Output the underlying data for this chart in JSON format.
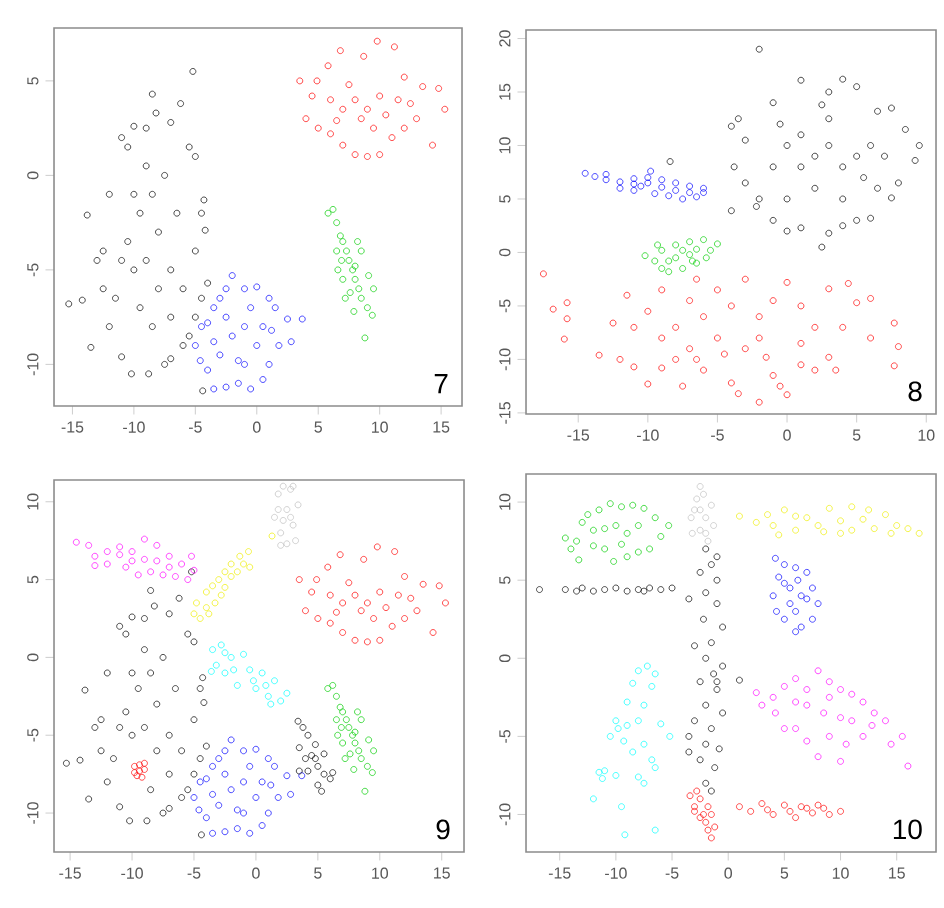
{
  "chart_data": [
    {
      "type": "scatter",
      "marker": "circle",
      "xlim": [
        -16.5,
        16.7
      ],
      "ylim": [
        -12.2,
        7.8
      ],
      "xticks": [
        -15,
        -10,
        -5,
        0,
        5,
        10,
        15
      ],
      "yticks": [
        -10,
        -5,
        0,
        5
      ],
      "annotations": [
        "7"
      ],
      "series": [
        {
          "color": "#000000",
          "x": [
            -15.3,
            -14.2,
            -13.5,
            -13.8,
            -12.5,
            -12,
            -11,
            -10.5,
            -10,
            -9,
            -8.5,
            -8.2,
            -7,
            -6.2,
            -5.2,
            -5.5,
            -5,
            -4.3,
            -4.5,
            -4.2,
            -5,
            -4,
            -4.5,
            -5,
            -5.5,
            -6,
            -7,
            -7.5,
            -8.8,
            -10.2,
            -11,
            -12,
            -12.5,
            -13,
            -11.5,
            -10,
            -9,
            -8,
            -9.5,
            -8.5,
            -7.5,
            -9,
            -10,
            -7,
            -8,
            -9.5,
            -6.5,
            -6,
            -10.5,
            -8.5,
            -7,
            -11,
            -4.4
          ],
          "values": [
            -6.8,
            -6.6,
            -9.1,
            -2.1,
            -4,
            -1,
            2,
            1.5,
            2.6,
            2.5,
            4.3,
            3.3,
            2.8,
            3.8,
            5.5,
            1.5,
            1,
            -1.3,
            -2,
            -2.9,
            -4,
            -5.7,
            -6.5,
            -7.5,
            -8.5,
            -9,
            -9.7,
            -10,
            -10.5,
            -10.5,
            -9.6,
            -8,
            -6,
            -4.5,
            -6.5,
            -5,
            -4.5,
            -3,
            -2,
            -1,
            0,
            0.5,
            -1,
            -5,
            -6,
            -7,
            -2,
            -6,
            -3.5,
            -8,
            -7.5,
            -4.5,
            -11.4
          ]
        },
        {
          "color": "#ff0000",
          "x": [
            3.5,
            4.5,
            4,
            5,
            6,
            7,
            8,
            9,
            10,
            11,
            12,
            14.3,
            13,
            15.3,
            14.8,
            13.5,
            12,
            11.2,
            9.8,
            8.7,
            6.8,
            5.8,
            4.9,
            6,
            7,
            8,
            9,
            10,
            8.5,
            9.5,
            7.5,
            10.5,
            11.5,
            6.5,
            12.5
          ],
          "values": [
            5,
            4.2,
            3,
            2.5,
            2.2,
            1.6,
            1.1,
            1,
            1.1,
            2,
            2.5,
            1.6,
            3,
            3.5,
            4.6,
            4.7,
            5.2,
            6.8,
            7.1,
            6.3,
            6.6,
            5.8,
            5,
            4,
            3.5,
            4,
            3.5,
            4.2,
            3,
            2.5,
            4.8,
            3.2,
            4,
            2.9,
            3.8
          ]
        },
        {
          "color": "#00cc00",
          "x": [
            5.8,
            6.2,
            6.5,
            6.8,
            7,
            7.3,
            7.5,
            7.8,
            8,
            8.3,
            8.5,
            9,
            9.4,
            8.8,
            7.2,
            6.6,
            6.5,
            8.5,
            8.2,
            9.5,
            7,
            7.6,
            8,
            6.9,
            9.1,
            7.9
          ],
          "values": [
            -2,
            -1.8,
            -2.5,
            -3.2,
            -3.5,
            -4,
            -4.5,
            -5,
            -5.5,
            -6,
            -6.5,
            -7,
            -7.4,
            -8.6,
            -6.5,
            -5,
            -4,
            -4,
            -3.5,
            -6,
            -5.5,
            -6.2,
            -4.8,
            -4.5,
            -5.3,
            -7.2
          ]
        },
        {
          "color": "#0000ff",
          "x": [
            -5,
            -4.5,
            -4,
            -3.5,
            -3,
            -2.5,
            -2,
            -1,
            0,
            1,
            1.5,
            2.5,
            3.7,
            2.8,
            1.8,
            1,
            0.5,
            -0.5,
            -1.5,
            -2.5,
            -3.5,
            -4,
            -4.6,
            -2,
            -1,
            0,
            -3,
            -1.5,
            -0.5,
            -2.5,
            0.5,
            -3.5,
            1.2,
            -1
          ],
          "values": [
            -9,
            -8,
            -7.8,
            -7,
            -6.5,
            -6,
            -5.3,
            -6,
            -5.9,
            -6.5,
            -7,
            -7.6,
            -7.6,
            -8.8,
            -9,
            -10,
            -10.8,
            -11.3,
            -11,
            -11.2,
            -11.3,
            -10.3,
            -9.8,
            -8.5,
            -8,
            -9,
            -9.5,
            -9.8,
            -7,
            -7.5,
            -8,
            -8.8,
            -8.2,
            -10
          ]
        }
      ]
    },
    {
      "type": "scatter",
      "marker": "circle",
      "xlim": [
        -18.75,
        10.7
      ],
      "ylim": [
        -15.1,
        20.8
      ],
      "xticks": [
        -15,
        -10,
        -5,
        0,
        5,
        10
      ],
      "yticks": [
        -15,
        -10,
        -5,
        0,
        5,
        10,
        15,
        20
      ],
      "annotations": [
        "8"
      ],
      "series": [
        {
          "color": "#000000",
          "x": [
            -4,
            -3.5,
            -3,
            -3.8,
            -4,
            -3,
            -2,
            -2.2,
            -1,
            0,
            1,
            2.5,
            3,
            4,
            5,
            6,
            7.5,
            8,
            9.2,
            9.5,
            8.5,
            7.5,
            6.5,
            5,
            4,
            3,
            1,
            -1,
            -2,
            -0.5,
            0,
            1,
            2,
            3,
            4,
            5,
            6,
            2,
            4,
            1,
            3,
            5.5,
            -1,
            0,
            7,
            2.5,
            6.5,
            -8.4
          ],
          "values": [
            11.8,
            12.5,
            10.5,
            8,
            3.9,
            6.5,
            5,
            4.3,
            3,
            2,
            2.3,
            0.5,
            1.8,
            2.5,
            3,
            3.2,
            5.1,
            6.5,
            8.6,
            10,
            11.5,
            13.5,
            13.2,
            15.5,
            16.2,
            15,
            16.1,
            14,
            19,
            12,
            10,
            8,
            9,
            10,
            8,
            9,
            10,
            6,
            5,
            11,
            12.5,
            7,
            8,
            5,
            9,
            13.8,
            6,
            8.5
          ]
        },
        {
          "color": "#0000ff",
          "x": [
            -14.5,
            -13.8,
            -13,
            -12,
            -11,
            -10,
            -9,
            -8,
            -7,
            -6,
            -6,
            -7,
            -8,
            -9,
            -10,
            -11,
            -12,
            -11,
            -9.5,
            -8.5,
            -10.5,
            -7.5,
            -13,
            -9.8,
            -6.5
          ],
          "values": [
            7.4,
            7.1,
            6.8,
            6.6,
            6.4,
            6.5,
            6.1,
            5.8,
            5.6,
            5.6,
            6,
            6.2,
            6.5,
            6.8,
            7,
            6.9,
            6,
            5.8,
            5.5,
            5.3,
            6.2,
            5,
            7.3,
            7.6,
            5.2
          ]
        },
        {
          "color": "#00cc00",
          "x": [
            -10.2,
            -9.5,
            -9,
            -8.5,
            -7.5,
            -6.5,
            -5.8,
            -5,
            -6,
            -7,
            -8,
            -9,
            -8,
            -7,
            -6.5,
            -7.5,
            -8.5,
            -6.8,
            -9.3,
            -5.5
          ],
          "values": [
            -0.3,
            -0.8,
            -1.5,
            -1.8,
            -1.5,
            -1,
            -0.5,
            0.8,
            1.2,
            1,
            0.7,
            0.2,
            -0.5,
            -0.2,
            0.3,
            0.2,
            -0.8,
            -0.8,
            0.7,
            0.2
          ]
        },
        {
          "color": "#ff0000",
          "x": [
            -17.5,
            -16.8,
            -15.8,
            -15.8,
            -16,
            -13.5,
            -12.5,
            -12,
            -11,
            -11,
            -10,
            -9,
            -9,
            -8,
            -7.5,
            -7,
            -7,
            -6.5,
            -6,
            -5,
            -4,
            -3.5,
            -3,
            -2,
            -1,
            -0.5,
            0,
            1,
            2,
            3,
            4,
            5,
            6,
            7.7,
            8,
            7.7,
            4.4,
            3,
            1,
            0,
            -1,
            -2,
            -3,
            -4,
            -5,
            -6,
            -9,
            -10,
            -11.5,
            -2,
            2,
            -4.5,
            -8,
            3.5,
            6,
            -1.5,
            1,
            -6.5
          ],
          "values": [
            -2,
            -5.3,
            -4.7,
            -6.2,
            -8.1,
            -9.6,
            -6.6,
            -10,
            -7,
            -10.7,
            -12.3,
            -8,
            -10.8,
            -7,
            -12.5,
            -9,
            -4.5,
            -10,
            -11,
            -8,
            -12.2,
            -13.2,
            -9,
            -14,
            -11.5,
            -12.5,
            -13.3,
            -10.5,
            -11,
            -9.8,
            -7,
            -4.7,
            -4.3,
            -6.6,
            -8.8,
            -10.6,
            -2.9,
            -3.4,
            -5,
            -2.8,
            -4.5,
            -6,
            -2.5,
            -5,
            -3.5,
            -6,
            -3.5,
            -5.5,
            -4,
            -8,
            -7,
            -9.5,
            -10,
            -11,
            -8,
            -9.8,
            -8.5,
            -2.5
          ]
        }
      ]
    },
    {
      "type": "scatter",
      "marker": "circle",
      "xlim": [
        -16.3,
        16.8
      ],
      "ylim": [
        -12.5,
        11.4
      ],
      "xticks": [
        -15,
        -10,
        -5,
        0,
        5,
        10,
        15
      ],
      "yticks": [
        -10,
        -5,
        0,
        5,
        10
      ],
      "annotations": [
        "9"
      ],
      "series": [
        {
          "color": "#000000",
          "x": [
            -15.3,
            -14.2,
            -13.5,
            -13.8,
            -12.5,
            -12,
            -11,
            -10.5,
            -10,
            -9,
            -8.5,
            -8.2,
            -7,
            -6.2,
            -5.2,
            -5.5,
            -5,
            -4.3,
            -4.5,
            -4.2,
            -5,
            -4,
            -4.5,
            -5,
            -5.5,
            -6,
            -7,
            -7.5,
            -8.8,
            -10.2,
            -11,
            -12,
            -12.5,
            -13,
            -11.5,
            -10,
            -9,
            -8,
            -9.5,
            -8.5,
            -7.5,
            -9,
            -10,
            -7,
            -8,
            -6.5,
            -6,
            -10.5,
            -8.5,
            -7,
            -11,
            -4.4
          ],
          "values": [
            -6.8,
            -6.6,
            -9.1,
            -2.1,
            -4,
            -1,
            2,
            1.5,
            2.6,
            2.5,
            4.3,
            3.3,
            2.8,
            3.8,
            5.5,
            1.5,
            1,
            -1.3,
            -2,
            -2.9,
            -4,
            -5.7,
            -6.5,
            -7.5,
            -8.5,
            -9,
            -9.7,
            -10,
            -10.5,
            -10.5,
            -9.6,
            -8,
            -6,
            -4.5,
            -6.5,
            -5,
            -4.5,
            -3,
            -2,
            -1,
            0,
            0.5,
            -1,
            -5,
            -6,
            -2,
            -6,
            -3.5,
            -8.5,
            -7.5,
            -4.5,
            -11.4
          ]
        },
        {
          "color": "#ff0000",
          "x": [
            3.5,
            4.5,
            4,
            5,
            6,
            7,
            8,
            9,
            10,
            11,
            12,
            14.3,
            13,
            15.3,
            14.8,
            13.5,
            12,
            11.2,
            9.8,
            8.7,
            6.8,
            5.8,
            4.9,
            6,
            7,
            8,
            9,
            10,
            8.5,
            9.5,
            7.5,
            10.5,
            11.5,
            6.5,
            12.5
          ],
          "values": [
            5,
            4.2,
            3,
            2.5,
            2.2,
            1.6,
            1.1,
            1,
            1.1,
            2,
            2.5,
            1.6,
            3,
            3.5,
            4.6,
            4.7,
            5.2,
            6.8,
            7.1,
            6.3,
            6.6,
            5.8,
            5,
            4,
            3.5,
            4,
            3.5,
            4.2,
            3,
            2.5,
            4.8,
            3.2,
            4,
            2.9,
            3.8
          ]
        },
        {
          "color": "#00cc00",
          "x": [
            5.8,
            6.2,
            6.5,
            6.8,
            7,
            7.3,
            7.5,
            7.8,
            8,
            8.3,
            8.5,
            9,
            9.4,
            8.8,
            7.2,
            6.6,
            6.5,
            8.5,
            8.2,
            9.5,
            7,
            7.6,
            8,
            6.9,
            9.1,
            7.9
          ],
          "values": [
            -2,
            -1.8,
            -2.5,
            -3.2,
            -3.5,
            -4,
            -4.5,
            -5,
            -5.5,
            -6,
            -6.5,
            -7,
            -7.4,
            -8.6,
            -6.5,
            -5,
            -4,
            -4,
            -3.5,
            -6,
            -5.5,
            -6.2,
            -4.8,
            -4.5,
            -5.3,
            -7.2
          ]
        },
        {
          "color": "#0000ff",
          "x": [
            -5,
            -4.5,
            -4,
            -3.5,
            -3,
            -2.5,
            -2,
            -1,
            0,
            1,
            1.5,
            2.5,
            3.7,
            2.8,
            1.8,
            1,
            0.5,
            -0.5,
            -1.5,
            -2.5,
            -3.5,
            -4,
            -4.6,
            -2,
            -1,
            0,
            -3,
            -1.5,
            -0.5,
            -2.5,
            0.5,
            -3.5,
            1.2,
            -1
          ],
          "values": [
            -9,
            -8,
            -7.8,
            -7,
            -6.5,
            -6,
            -5.3,
            -6,
            -5.9,
            -6.5,
            -7,
            -7.6,
            -7.6,
            -8.8,
            -9,
            -10,
            -10.8,
            -11.3,
            -11,
            -11.2,
            -11.3,
            -10.3,
            -9.8,
            -8.5,
            -8,
            -9,
            -9.5,
            -9.8,
            -7,
            -7.5,
            -8,
            -8.8,
            -8.2,
            -10
          ]
        },
        {
          "color": "#ff00ff",
          "x": [
            -14.5,
            -13.5,
            -13,
            -12,
            -11,
            -10,
            -9,
            -8,
            -7,
            -6,
            -5,
            -5.5,
            -6.5,
            -7.5,
            -8.5,
            -9.5,
            -10.5,
            -12,
            -13,
            -9,
            -8,
            -10,
            -11,
            -7,
            -5.2
          ],
          "values": [
            7.4,
            7.2,
            6.5,
            6.8,
            6.6,
            6.8,
            7.6,
            7.2,
            6.5,
            6,
            5.6,
            5,
            5.2,
            5.3,
            5.5,
            5.3,
            5.8,
            6,
            5.9,
            6.3,
            6.2,
            6.2,
            7.1,
            5.8,
            6.5
          ]
        },
        {
          "color": "#eeee00",
          "x": [
            -5,
            -4.8,
            -4.5,
            -4,
            -4,
            -3.5,
            -3.3,
            -3,
            -2.8,
            -2.5,
            -2,
            -2,
            -1.5,
            -1.3,
            -1,
            -0.6,
            -0.5,
            -3.8,
            1.3,
            -2.5
          ],
          "values": [
            2.8,
            3.5,
            2.5,
            3.2,
            4.2,
            4.6,
            3.5,
            5,
            4,
            5.5,
            5.2,
            6,
            5.5,
            6.5,
            6,
            6.8,
            5.8,
            2.8,
            7.8,
            4.5
          ]
        },
        {
          "color": "#bebebe",
          "x": [
            1.5,
            1.8,
            2,
            2.2,
            2.5,
            2.8,
            3,
            3.2,
            3.4,
            2.5,
            1.8,
            3,
            2.2,
            2.8,
            2
          ],
          "values": [
            9,
            10.5,
            8,
            11,
            9.5,
            10.8,
            8.5,
            7.5,
            9.8,
            7.3,
            9.5,
            11,
            8.8,
            9,
            7.2
          ]
        },
        {
          "color": "#00ffff",
          "x": [
            -3.5,
            -3.2,
            -2.8,
            -2.5,
            -2,
            -1.5,
            -1,
            -0.5,
            0,
            0.5,
            1,
            1.5,
            2,
            2.5,
            -1.8,
            -0.2,
            0.8,
            -2.5,
            -3.6,
            1.2
          ],
          "values": [
            0.5,
            -0.5,
            0.8,
            -1,
            0,
            -1.8,
            0.2,
            -0.8,
            -2,
            -1,
            -2.5,
            -1.5,
            -2.8,
            -2.3,
            -0.8,
            -1.5,
            -1.8,
            0.3,
            -0.9,
            -3
          ]
        },
        {
          "color": "#000000",
          "x": [
            3.4,
            3.8,
            4.2,
            4.8,
            3.5,
            4,
            4.5,
            5,
            5.5,
            6,
            5,
            5.3,
            6.2,
            4.2,
            3.5,
            4.8,
            5.5
          ],
          "values": [
            -4.1,
            -4.5,
            -5,
            -5.6,
            -5.8,
            -6.5,
            -6.3,
            -7,
            -7.5,
            -7.8,
            -8.2,
            -8.6,
            -7.4,
            -7.3,
            -7.3,
            -6.5,
            -6.2
          ]
        },
        {
          "color": "#ff0000",
          "x": [
            -9.8,
            -9.4,
            -9,
            -9.6,
            -9.2,
            -9.4,
            -9,
            -9.8
          ],
          "values": [
            -7,
            -6.9,
            -7.2,
            -7.6,
            -7.7,
            -7.3,
            -6.8,
            -7.4
          ]
        }
      ]
    },
    {
      "type": "scatter",
      "marker": "circle",
      "xlim": [
        -18,
        18.5
      ],
      "ylim": [
        -12.4,
        11.8
      ],
      "xticks": [
        -15,
        -10,
        -5,
        0,
        5,
        10,
        15
      ],
      "yticks": [
        -10,
        -5,
        0,
        5,
        10
      ],
      "annotations": [
        "10"
      ],
      "series": [
        {
          "color": "#00cc00",
          "x": [
            -14.5,
            -14,
            -13.3,
            -13.5,
            -13,
            -12.5,
            -11.5,
            -10.5,
            -9.5,
            -8.5,
            -7.5,
            -6.5,
            -5.3,
            -6,
            -7,
            -8,
            -9,
            -10.2,
            -11,
            -12,
            -10,
            -9,
            -11,
            -8,
            -12,
            -9.5
          ],
          "values": [
            7.7,
            7,
            6.3,
            7.5,
            8.7,
            9.2,
            9.5,
            9.9,
            9.7,
            9.8,
            9.6,
            9,
            8.5,
            7.8,
            7,
            6.8,
            6.5,
            6.2,
            7,
            7.2,
            8.5,
            8,
            8.3,
            8.5,
            8.2,
            7.3
          ]
        },
        {
          "color": "#bebebe",
          "x": [
            -3.2,
            -3,
            -2.8,
            -2.5,
            -2.2,
            -2,
            -1.5,
            -1.3,
            -1.8,
            -2.5,
            -3.3,
            -2,
            -2.5
          ],
          "values": [
            8,
            9.5,
            10.2,
            11,
            10.5,
            9,
            9.8,
            8.5,
            7.5,
            8.2,
            9,
            8,
            9.5
          ]
        },
        {
          "color": "#eeee00",
          "x": [
            1,
            2.5,
            4,
            5,
            6,
            7,
            8,
            9,
            10,
            11,
            12,
            13,
            14,
            15,
            16,
            17,
            10,
            6,
            12.5,
            8.5,
            3.5,
            14.5,
            4.5,
            11
          ],
          "values": [
            9.1,
            8.7,
            8.5,
            9.5,
            8.2,
            9,
            8.5,
            9.6,
            8,
            9.7,
            8.9,
            8.3,
            9.2,
            8.5,
            8.3,
            8,
            8.8,
            9.1,
            9.5,
            8.1,
            9.2,
            8,
            7.9,
            8.2
          ]
        },
        {
          "color": "#000000",
          "x": [
            -16.8,
            -14.5,
            -13,
            -12,
            -11,
            -10,
            -9,
            -8,
            -7,
            -6,
            -5,
            -13.5,
            -7.5
          ],
          "values": [
            4.4,
            4.4,
            4.5,
            4.3,
            4.4,
            4.5,
            4.3,
            4.4,
            4.5,
            4.4,
            4.5,
            4.3,
            4.3
          ]
        },
        {
          "color": "#000000",
          "x": [
            -2,
            -1,
            -1.5,
            -2.5,
            -1,
            -2,
            -3.5,
            -1,
            -2.2,
            -0.5,
            -3,
            -1.5,
            -2,
            -0.5,
            -1.3,
            -2.5,
            -1,
            -2,
            -0.5,
            -3,
            -1.5,
            -2,
            -0.8,
            -2.5,
            -1.2,
            -2,
            -1.5,
            -3.5,
            -1,
            1,
            -3.5
          ],
          "values": [
            7,
            6.5,
            6,
            5.5,
            5,
            4.2,
            3.8,
            3.5,
            2.5,
            2,
            0.8,
            1,
            0,
            -0.5,
            -1,
            -1.5,
            -2,
            -3,
            -3.5,
            -4,
            -4.5,
            -5.5,
            -5.8,
            -6.5,
            -7,
            -8,
            -8.5,
            -6,
            -1.5,
            -1.4,
            -5
          ]
        },
        {
          "color": "#0000ff",
          "x": [
            4.2,
            5,
            6,
            7,
            7.5,
            8,
            7.5,
            6.5,
            6,
            5,
            4.3,
            4,
            4.5,
            5.5,
            6.5,
            5.5,
            6,
            7,
            5,
            6.2
          ],
          "values": [
            6.4,
            6,
            5.8,
            5.5,
            4.5,
            3.5,
            2.5,
            2,
            1.7,
            2.5,
            3,
            4,
            5.2,
            4.5,
            4,
            3.5,
            3,
            3.8,
            4.8,
            5
          ]
        },
        {
          "color": "#ff00ff",
          "x": [
            2.5,
            3,
            4,
            4.2,
            5,
            6,
            7,
            8,
            9,
            10,
            11,
            12,
            13,
            14,
            15.5,
            16,
            14.5,
            12,
            10.5,
            9,
            8,
            7,
            6,
            5,
            7,
            8.5,
            10,
            11,
            6,
            9,
            12.8,
            10
          ],
          "values": [
            -2.2,
            -3,
            -2.5,
            -3.5,
            -1.8,
            -1.3,
            -2,
            -0.8,
            -1.5,
            -2,
            -2.3,
            -2.8,
            -3.5,
            -4,
            -5,
            -6.9,
            -5.5,
            -5,
            -5.5,
            -5,
            -6.3,
            -5.3,
            -4.5,
            -4.5,
            -3,
            -3.5,
            -3.8,
            -4,
            -2.8,
            -2.5,
            -4.3,
            -6.6
          ]
        },
        {
          "color": "#00ffff",
          "x": [
            -7.2,
            -8,
            -6.5,
            -8.5,
            -6.8,
            -9,
            -7.5,
            -10,
            -9,
            -8,
            -6,
            -5.2,
            -9.3,
            -7.5,
            -8.5,
            -6.8,
            -6.5,
            -10.5,
            -11.5,
            -11.2,
            -10,
            -8,
            -7.5,
            -12,
            -9.5,
            -9.2,
            -6.5,
            -11,
            -9.8
          ],
          "values": [
            -0.5,
            -0.8,
            -1,
            -1.6,
            -1.8,
            -2.8,
            -3,
            -4,
            -4.3,
            -4,
            -4.2,
            -5,
            -5.3,
            -5.5,
            -6,
            -6.5,
            -7,
            -5,
            -7.3,
            -7.7,
            -7.5,
            -7.6,
            -8,
            -9,
            -9.5,
            -11.3,
            -11,
            -7.2,
            -4.5
          ]
        },
        {
          "color": "#ff0000",
          "x": [
            -3.4,
            -3,
            -2.8,
            -2.5,
            -2.2,
            -2,
            -1.8,
            -1.5,
            -1.2,
            -1.5,
            -2.5,
            -3,
            -1.8
          ],
          "values": [
            -8.8,
            -9.5,
            -8.5,
            -9,
            -10,
            -10.5,
            -11,
            -11.5,
            -10.8,
            -10,
            -10.2,
            -9.8,
            -9.5
          ]
        },
        {
          "color": "#ff0000",
          "x": [
            1,
            2,
            3,
            4,
            5,
            6,
            7,
            8,
            9,
            10,
            5.5,
            3.5,
            7.5,
            8.5,
            6.5
          ],
          "values": [
            -9.5,
            -9.8,
            -9.3,
            -10,
            -9.4,
            -10.2,
            -9.6,
            -9.4,
            -10,
            -9.8,
            -9.8,
            -9.7,
            -9.9,
            -9.6,
            -9.5
          ]
        }
      ]
    }
  ]
}
